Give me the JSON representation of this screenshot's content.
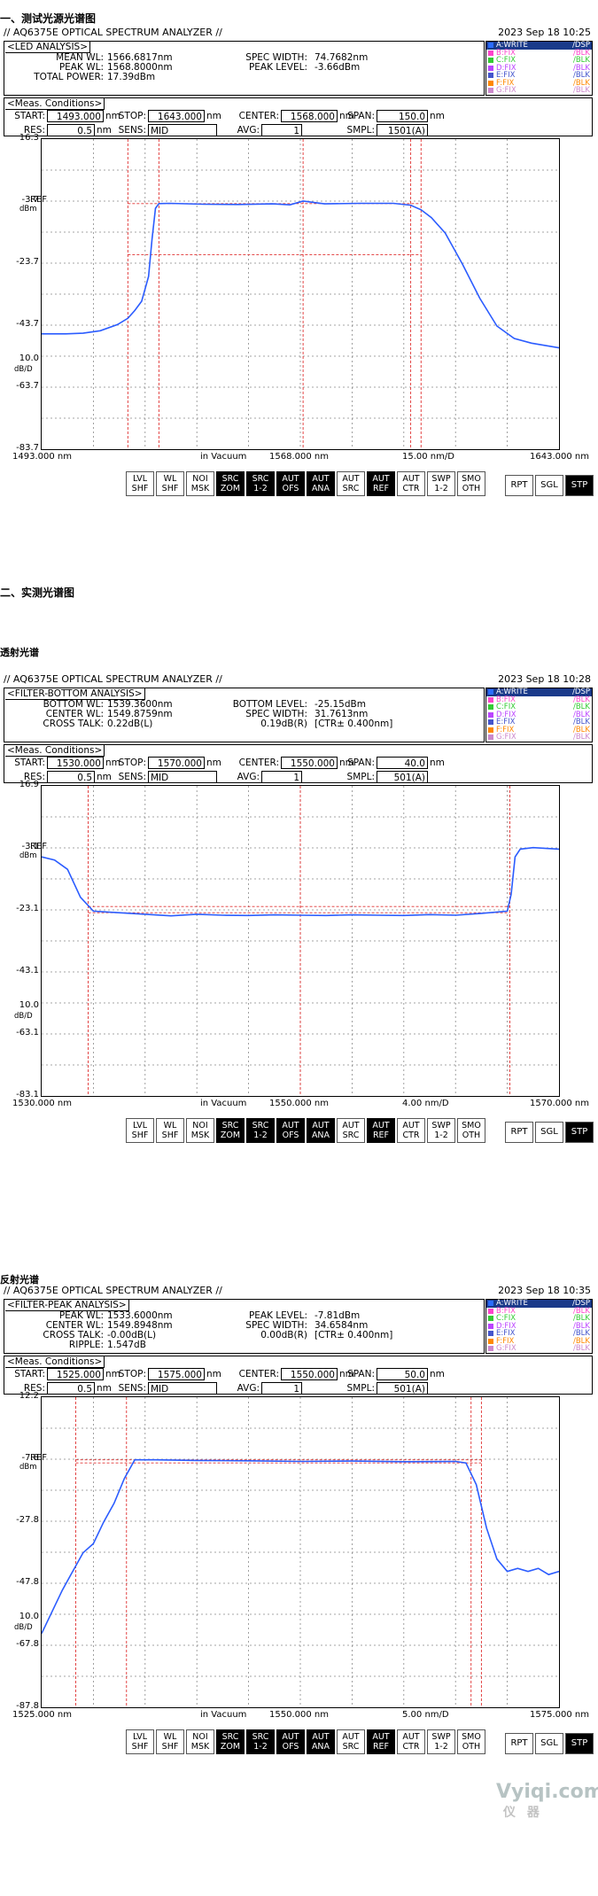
{
  "headings": {
    "h1": "一、测试光源光谱图",
    "h2": "二、实测光谱图",
    "h3": "透射光谱",
    "h4": "反射光谱"
  },
  "watermark": {
    "line1": "Vyiqi.com",
    "line2": "仪 器"
  },
  "common": {
    "title": "// AQ6375E OPTICAL SPECTRUM ANALYZER //",
    "meas_head": "<Meas. Conditions>",
    "lbl_start": "START:",
    "lbl_stop": "STOP:",
    "lbl_center": "CENTER:",
    "lbl_span": "SPAN:",
    "lbl_res": "RES:",
    "lbl_sens": "SENS:",
    "lbl_avg": "AVG:",
    "lbl_smpl": "SMPL:",
    "unit_nm": "nm",
    "in_vacuum": "in Vacuum",
    "ref_tag": "REF",
    "dbm_tag": "dBm",
    "dbd_tag": "dB/D",
    "traces": [
      {
        "label": "A:WRITE",
        "status": "/DSP",
        "color": "#2b6cff"
      },
      {
        "label": "B:FIX",
        "status": "/BLK",
        "color": "#ff44cc"
      },
      {
        "label": "C:FIX",
        "status": "/BLK",
        "color": "#33cc33"
      },
      {
        "label": "D:FIX",
        "status": "/BLK",
        "color": "#bb44ff"
      },
      {
        "label": "E:FIX",
        "status": "/BLK",
        "color": "#4455cc"
      },
      {
        "label": "F:FIX",
        "status": "/BLK",
        "color": "#ff8800"
      },
      {
        "label": "G:FIX",
        "status": "/BLK",
        "color": "#cc88cc"
      }
    ],
    "buttons": [
      {
        "l1": "LVL",
        "l2": "SHF",
        "on": false
      },
      {
        "l1": "WL",
        "l2": "SHF",
        "on": false
      },
      {
        "l1": "NOI",
        "l2": "MSK",
        "on": false
      },
      {
        "l1": "SRC",
        "l2": "ZOM",
        "on": true
      },
      {
        "l1": "SRC",
        "l2": "1-2",
        "on": true
      },
      {
        "l1": "AUT",
        "l2": "OFS",
        "on": true
      },
      {
        "l1": "AUT",
        "l2": "ANA",
        "on": true
      },
      {
        "l1": "AUT",
        "l2": "SRC",
        "on": false
      },
      {
        "l1": "AUT",
        "l2": "REF",
        "on": true
      },
      {
        "l1": "AUT",
        "l2": "CTR",
        "on": false
      },
      {
        "l1": "SWP",
        "l2": "1-2",
        "on": false
      },
      {
        "l1": "SMO",
        "l2": "OTH",
        "on": false
      }
    ],
    "right_buttons": [
      {
        "label": "RPT",
        "on": false
      },
      {
        "label": "SGL",
        "on": false
      },
      {
        "label": "STP",
        "on": true
      }
    ]
  },
  "screens": [
    {
      "date": "2023 Sep 18 10:25",
      "analysis_head": "<LED ANALYSIS>",
      "lines": [
        {
          "k": "MEAN WL:",
          "v": "1566.6817nm",
          "k2": "SPEC WIDTH:",
          "v2": "74.7682nm"
        },
        {
          "k": "PEAK WL:",
          "v": "1568.8000nm",
          "k2": "PEAK LEVEL:",
          "v2": "-3.66dBm"
        },
        {
          "k": "TOTAL POWER:",
          "v": "17.39dBm",
          "k2": "",
          "v2": ""
        },
        {
          "k": "",
          "v": "",
          "k2": "",
          "v2": ""
        }
      ],
      "start": "1493.000",
      "stop": "1643.000",
      "center": "1568.000",
      "span": "150.0",
      "res": "0.5",
      "sens": "MID",
      "avg": "1",
      "smpl": "1501(A)",
      "y_ticks": [
        "16.3",
        "-3.7",
        "-23.7",
        "-43.7",
        "-63.7",
        "-83.7"
      ],
      "y_div": "10.0",
      "x_left": "1493.000 nm",
      "x_center": "1568.000 nm",
      "x_div": "15.00 nm/D",
      "x_right": "1643.000 nm",
      "chart_data": {
        "type": "line",
        "xlim": [
          1493,
          1643
        ],
        "ylim": [
          -83.7,
          16.3
        ],
        "x": [
          1493,
          1500,
          1505,
          1510,
          1515,
          1518,
          1520,
          1522,
          1524,
          1525,
          1526,
          1527,
          1530,
          1540,
          1550,
          1560,
          1565,
          1568.8,
          1575,
          1585,
          1595,
          1600,
          1603,
          1606,
          1610,
          1615,
          1620,
          1625,
          1630,
          1635,
          1643
        ],
        "y": [
          -46.5,
          -46.5,
          -46.3,
          -45.5,
          -43.5,
          -41.5,
          -39,
          -36,
          -28,
          -16,
          -6,
          -4.5,
          -4.4,
          -4.7,
          -4.8,
          -4.6,
          -4.9,
          -3.7,
          -4.6,
          -4.4,
          -4.4,
          -5,
          -6.5,
          -9,
          -14,
          -24,
          -35,
          -44,
          -48,
          -49.5,
          -51
        ],
        "markers_x": [
          1518,
          1527,
          1568.8,
          1600,
          1603
        ],
        "marker_y": [
          -4.5,
          -21
        ]
      }
    },
    {
      "date": "2023 Sep 18 10:28",
      "analysis_head": "<FILTER-BOTTOM ANALYSIS>",
      "lines": [
        {
          "k": "BOTTOM WL:",
          "v": "1539.3600nm",
          "k2": "BOTTOM LEVEL:",
          "v2": "-25.15dBm"
        },
        {
          "k": "CENTER WL:",
          "v": "1549.8759nm",
          "k2": "SPEC WIDTH:",
          "v2": "31.7613nm"
        },
        {
          "k": "CROSS TALK:",
          "v": "0.22dB(L)",
          "k2": "0.19dB(R)",
          "v2": "[CTR± 0.400nm]"
        },
        {
          "k": "",
          "v": "",
          "k2": "",
          "v2": ""
        }
      ],
      "start": "1530.000",
      "stop": "1570.000",
      "center": "1550.000",
      "span": "40.0",
      "res": "0.5",
      "sens": "MID",
      "avg": "1",
      "smpl": "501(A)",
      "y_ticks": [
        "16.9",
        "-3.1",
        "-23.1",
        "-43.1",
        "-63.1",
        "-83.1"
      ],
      "y_div": "10.0",
      "x_left": "1530.000 nm",
      "x_center": "1550.000 nm",
      "x_div": "4.00 nm/D",
      "x_right": "1570.000 nm",
      "chart_data": {
        "type": "line",
        "xlim": [
          1530,
          1570
        ],
        "ylim": [
          -83.1,
          16.9
        ],
        "x": [
          1530,
          1531,
          1532,
          1533,
          1534,
          1536,
          1538,
          1540,
          1542,
          1544,
          1546,
          1548,
          1550,
          1552,
          1554,
          1556,
          1558,
          1560,
          1562,
          1564,
          1566,
          1566.3,
          1566.6,
          1567,
          1568,
          1570
        ],
        "y": [
          -6,
          -7,
          -10,
          -19,
          -23.5,
          -24,
          -24.5,
          -25,
          -24.5,
          -24.8,
          -24.9,
          -24.7,
          -24.8,
          -24.9,
          -24.7,
          -24.8,
          -24.9,
          -24.6,
          -24.8,
          -24.2,
          -23.5,
          -18,
          -6,
          -3.5,
          -3,
          -3.5
        ],
        "markers_x": [
          1533.6,
          1550,
          1566.2
        ],
        "marker_y": [
          -22,
          -24
        ]
      }
    },
    {
      "date": "2023 Sep 18 10:35",
      "analysis_head": "<FILTER-PEAK ANALYSIS>",
      "lines": [
        {
          "k": "PEAK WL:",
          "v": "1533.6000nm",
          "k2": "PEAK LEVEL:",
          "v2": "-7.81dBm"
        },
        {
          "k": "CENTER WL:",
          "v": "1549.8948nm",
          "k2": "SPEC WIDTH:",
          "v2": "34.6584nm"
        },
        {
          "k": "CROSS TALK:",
          "v": "-0.00dB(L)",
          "k2": "0.00dB(R)",
          "v2": "[CTR± 0.400nm]"
        },
        {
          "k": "RIPPLE:",
          "v": "1.547dB",
          "k2": "",
          "v2": ""
        }
      ],
      "start": "1525.000",
      "stop": "1575.000",
      "center": "1550.000",
      "span": "50.0",
      "res": "0.5",
      "sens": "MID",
      "avg": "1",
      "smpl": "501(A)",
      "y_ticks": [
        "12.2",
        "-7.8",
        "-27.8",
        "-47.8",
        "-67.8",
        "-87.8"
      ],
      "y_div": "10.0",
      "x_left": "1525.000 nm",
      "x_center": "1550.000 nm",
      "x_div": "5.00 nm/D",
      "x_right": "1575.000 nm",
      "chart_data": {
        "type": "line",
        "xlim": [
          1525,
          1575
        ],
        "ylim": [
          -87.8,
          12.2
        ],
        "x": [
          1525,
          1526,
          1527,
          1528,
          1529,
          1530,
          1531,
          1532,
          1533,
          1534,
          1536,
          1540,
          1545,
          1550,
          1555,
          1560,
          1565,
          1566,
          1567,
          1568,
          1569,
          1570,
          1571,
          1572,
          1573,
          1574,
          1575
        ],
        "y": [
          -64,
          -57,
          -50,
          -44,
          -38,
          -35,
          -28,
          -22,
          -14,
          -8,
          -8,
          -8.2,
          -8.3,
          -8.5,
          -8.4,
          -8.6,
          -8.5,
          -9,
          -16,
          -30,
          -40,
          -44,
          -43,
          -44,
          -43,
          -45,
          -44
        ],
        "markers_x": [
          1528.3,
          1533.2,
          1566.5,
          1567.5
        ],
        "marker_y": [
          -8,
          -9
        ]
      }
    }
  ]
}
